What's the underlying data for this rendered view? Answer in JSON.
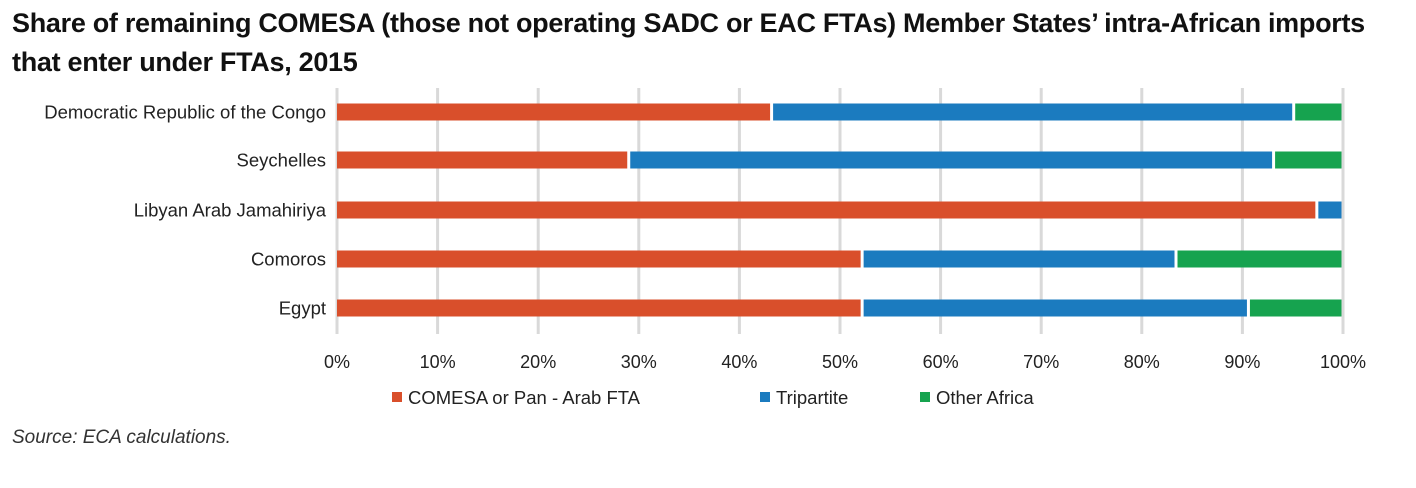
{
  "title": "Share of remaining COMESA (those not operating SADC or EAC FTAs) Member States’ intra-African imports that enter under FTAs, 2015",
  "source": "Source: ECA calculations.",
  "chart_data": {
    "type": "bar",
    "orientation": "horizontal",
    "stacked": true,
    "categories": [
      "Democratic Republic of the Congo",
      "Seychelles",
      "Libyan Arab Jamahiriya",
      "Comoros",
      "Egypt"
    ],
    "series": [
      {
        "name": "COMESA or Pan - Arab FTA",
        "color": "#d94f2b",
        "values": [
          43.2,
          29.0,
          97.4,
          52.2,
          52.2
        ]
      },
      {
        "name": "Tripartite",
        "color": "#1b7bbf",
        "values": [
          51.9,
          64.1,
          2.6,
          31.2,
          38.4
        ]
      },
      {
        "name": "Other Africa",
        "color": "#16a34f",
        "values": [
          4.9,
          6.9,
          0.0,
          16.6,
          9.4
        ]
      }
    ],
    "xticks": [
      "0%",
      "10%",
      "20%",
      "30%",
      "40%",
      "50%",
      "60%",
      "70%",
      "80%",
      "90%",
      "100%"
    ],
    "xlim": [
      0,
      100
    ],
    "grid": true,
    "legend_position": "bottom"
  }
}
